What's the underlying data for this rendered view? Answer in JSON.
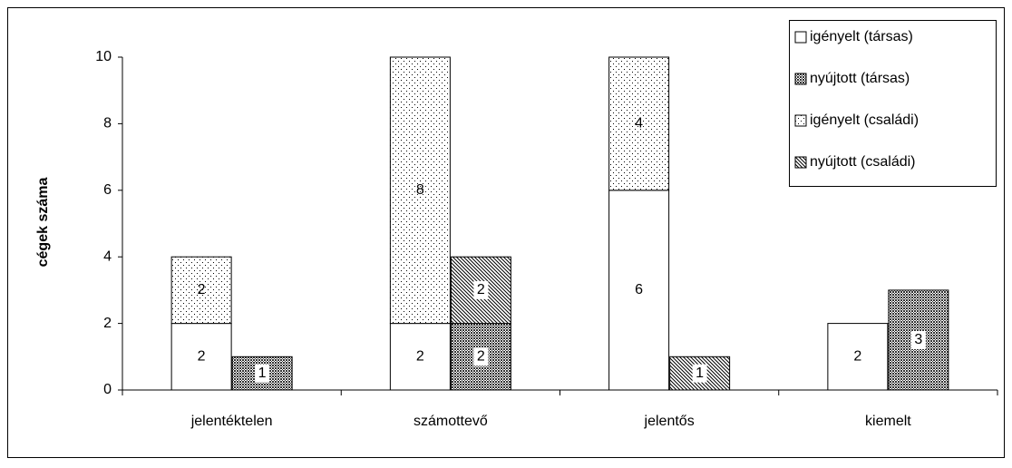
{
  "chart_data": {
    "type": "bar",
    "y_label": "cégek száma",
    "categories": [
      "jelentéktelen",
      "számottevő",
      "jelentős",
      "kiemelt"
    ],
    "series": [
      {
        "name": "igényelt (társas)",
        "color": "#ffffff",
        "values": [
          2,
          2,
          6,
          2
        ]
      },
      {
        "name": "nyújtott (társas)",
        "color": "#333333",
        "values": [
          1,
          2,
          null,
          3
        ]
      },
      {
        "name": "igényelt (családi)",
        "color": "#000000",
        "values": [
          2,
          8,
          4,
          null
        ]
      },
      {
        "name": "nyújtott (családi)",
        "color": "#000000",
        "values": [
          null,
          2,
          1,
          null
        ]
      }
    ],
    "ylim": [
      0,
      10
    ],
    "yticks": [
      0,
      2,
      4,
      6,
      8,
      10
    ],
    "grid": false,
    "legend": "top-right"
  }
}
